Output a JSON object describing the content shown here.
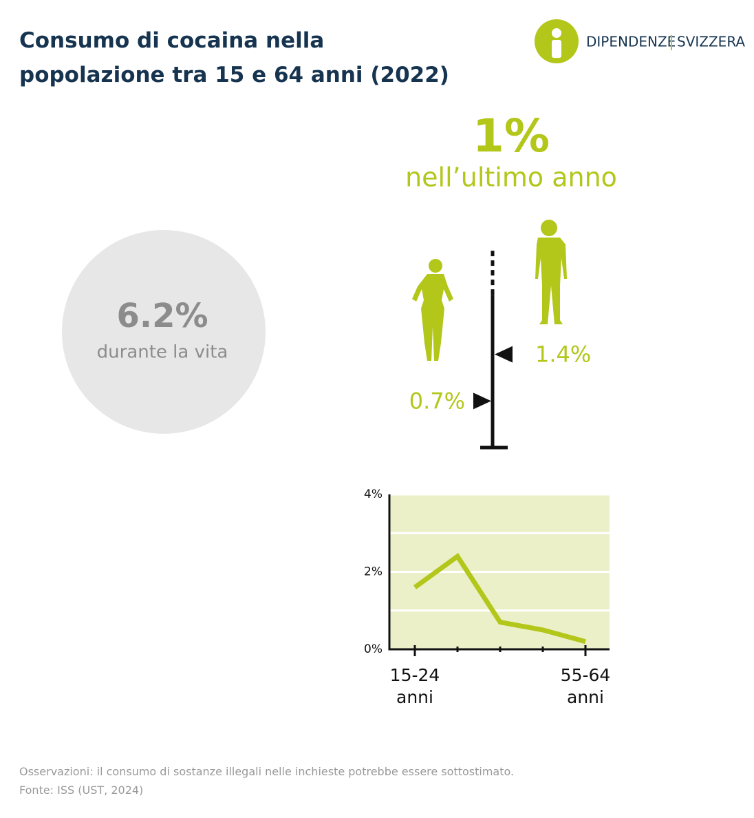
{
  "header": {
    "title": "Consumo di cocaina nella\npopolazione tra 15 e 64 anni (2022)",
    "logo": [
      "DIPENDENZE",
      "SVIZZERA"
    ]
  },
  "chart_data": [
    {
      "type": "stat",
      "value": 1,
      "label": "1%",
      "caption": "nell’ultimo anno",
      "color": "#b3c61a"
    },
    {
      "type": "stat",
      "value": 6.2,
      "label": "6.2%",
      "caption": "durante la vita",
      "color": "#8c8c8c"
    },
    {
      "type": "marker",
      "values": [
        0.7,
        1.4
      ],
      "value_labels": [
        "0.7%",
        "1.4%"
      ],
      "ylim": [
        0,
        3
      ],
      "color": "#b3c61a"
    },
    {
      "type": "line",
      "categories": [
        "15-24 anni",
        null,
        null,
        null,
        "55-64 anni"
      ],
      "values": [
        1.6,
        2.4,
        0.7,
        0.5,
        0.2
      ],
      "color": "#b3c61a",
      "ylim": [
        0,
        4
      ],
      "yticks": [
        {
          "value": 0,
          "label": "0%"
        },
        {
          "value": 2,
          "label": "2%"
        },
        {
          "value": 4,
          "label": "4%"
        }
      ],
      "minor_yticks": [
        1,
        3
      ],
      "grid": true
    }
  ],
  "footer": {
    "note": "Osservazioni: il consumo di sostanze illegali nelle inchieste potrebbe essere sottostimato.",
    "source": "Fonte: ISS (UST, 2024)"
  }
}
